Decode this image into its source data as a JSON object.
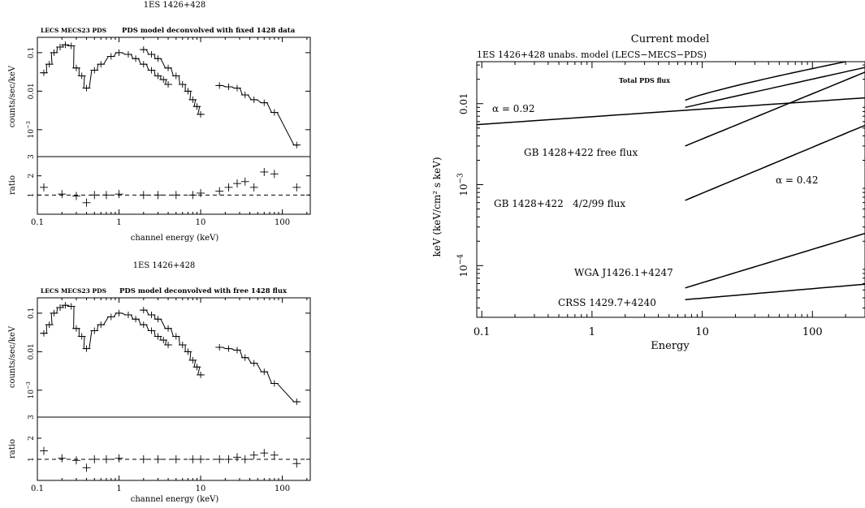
{
  "chart_data": [
    {
      "type": "line",
      "title": "1ES 1426+428",
      "header_left": "LECS MECS23 PDS",
      "header_right": "PDS model deconvolved with fixed 1428 data",
      "xlabel": "channel energy (keV)",
      "ylabel_top": "counts/sec/keV",
      "ylabel_bottom": "ratio",
      "x_scale": "log",
      "xlim": [
        0.1,
        220
      ],
      "top_ylim": [
        0.0002,
        0.25
      ],
      "y_scale_top": "log",
      "bottom_ylim": [
        0,
        3
      ],
      "x_tick_labels": [
        "0.1",
        "1",
        "10",
        "100"
      ],
      "y_tick_labels_top": [
        "0.1",
        "0.01",
        "10^-3"
      ],
      "y_tick_labels_bottom": [
        "1",
        "2",
        "3"
      ],
      "series": [
        {
          "name": "data",
          "x": [
            0.12,
            0.14,
            0.16,
            0.19,
            0.22,
            0.26,
            0.3,
            0.35,
            0.4,
            0.5,
            0.6,
            0.8,
            1.0,
            1.3,
            1.6,
            2.0,
            2.5,
            3.0,
            3.5,
            4.0
          ],
          "y": [
            0.03,
            0.05,
            0.1,
            0.14,
            0.16,
            0.15,
            0.04,
            0.025,
            0.012,
            0.035,
            0.05,
            0.08,
            0.1,
            0.09,
            0.07,
            0.05,
            0.035,
            0.025,
            0.02,
            0.015
          ]
        },
        {
          "name": "data-mecs",
          "x": [
            2.0,
            2.5,
            3.0,
            4.0,
            5.0,
            6.0,
            7.0,
            8.0,
            9.0,
            10.0
          ],
          "y": [
            0.12,
            0.09,
            0.07,
            0.04,
            0.025,
            0.015,
            0.01,
            0.006,
            0.004,
            0.0025
          ]
        },
        {
          "name": "data-pds",
          "x": [
            17,
            22,
            28,
            35,
            45,
            60,
            80,
            150
          ],
          "y": [
            0.014,
            0.013,
            0.012,
            0.008,
            0.006,
            0.005,
            0.0028,
            0.0004
          ]
        },
        {
          "name": "ratio",
          "x": [
            0.12,
            0.2,
            0.3,
            0.4,
            0.5,
            0.7,
            1,
            2,
            3,
            5,
            8,
            10,
            17,
            22,
            28,
            35,
            45,
            60,
            80,
            150
          ],
          "y": [
            1.4,
            1.05,
            0.95,
            0.6,
            1.0,
            1.0,
            1.05,
            1.0,
            1.0,
            1.0,
            1.0,
            1.1,
            1.2,
            1.4,
            1.6,
            1.7,
            1.4,
            2.2,
            2.1,
            1.4
          ]
        }
      ]
    },
    {
      "type": "line",
      "title": "1ES 1426+428",
      "header_left": "LECS MECS23 PDS",
      "header_right": "PDS model deconvolved with free 1428 flux",
      "xlabel": "channel energy (keV)",
      "ylabel_top": "counts/sec/keV",
      "ylabel_bottom": "ratio",
      "x_scale": "log",
      "xlim": [
        0.1,
        220
      ],
      "top_ylim": [
        0.0002,
        0.25
      ],
      "y_scale_top": "log",
      "bottom_ylim": [
        0,
        3
      ],
      "x_tick_labels": [
        "0.1",
        "1",
        "10",
        "100"
      ],
      "y_tick_labels_top": [
        "0.1",
        "0.01",
        "10^-3"
      ],
      "y_tick_labels_bottom": [
        "1",
        "2",
        "3"
      ],
      "series": [
        {
          "name": "data",
          "x": [
            0.12,
            0.14,
            0.16,
            0.19,
            0.22,
            0.26,
            0.3,
            0.35,
            0.4,
            0.5,
            0.6,
            0.8,
            1.0,
            1.3,
            1.6,
            2.0,
            2.5,
            3.0,
            3.5,
            4.0
          ],
          "y": [
            0.03,
            0.05,
            0.1,
            0.14,
            0.16,
            0.15,
            0.04,
            0.025,
            0.012,
            0.035,
            0.05,
            0.08,
            0.1,
            0.09,
            0.07,
            0.05,
            0.035,
            0.025,
            0.02,
            0.015
          ]
        },
        {
          "name": "data-mecs",
          "x": [
            2.0,
            2.5,
            3.0,
            4.0,
            5.0,
            6.0,
            7.0,
            8.0,
            9.0,
            10.0
          ],
          "y": [
            0.12,
            0.09,
            0.07,
            0.04,
            0.025,
            0.015,
            0.01,
            0.006,
            0.004,
            0.0025
          ]
        },
        {
          "name": "data-pds",
          "x": [
            17,
            22,
            28,
            35,
            45,
            60,
            80,
            150
          ],
          "y": [
            0.013,
            0.012,
            0.011,
            0.007,
            0.005,
            0.003,
            0.0015,
            0.0005
          ]
        },
        {
          "name": "ratio",
          "x": [
            0.12,
            0.2,
            0.3,
            0.4,
            0.5,
            0.7,
            1,
            2,
            3,
            5,
            8,
            10,
            17,
            22,
            28,
            35,
            45,
            60,
            80,
            150
          ],
          "y": [
            1.4,
            1.05,
            0.95,
            0.6,
            1.0,
            1.0,
            1.05,
            1.0,
            1.0,
            1.0,
            1.0,
            1.0,
            1.0,
            1.0,
            1.1,
            1.0,
            1.2,
            1.3,
            1.2,
            0.8
          ]
        }
      ]
    },
    {
      "type": "line",
      "title": "Current model",
      "subtitle": "1ES 1426+428 unabs. model  (LECS−MECS−PDS)",
      "xlabel": "Energy",
      "ylabel": "keV (keV/cm² s keV)",
      "x_scale": "log",
      "y_scale": "log",
      "xlim": [
        0.09,
        300
      ],
      "ylim": [
        2.3e-05,
        0.033
      ],
      "x_tick_labels": [
        "0.1",
        "1",
        "10",
        "100"
      ],
      "y_tick_labels": [
        "0.01",
        "10^-3",
        "10^-4"
      ],
      "annotations": [
        "Total PDS flux",
        "α = 0.92",
        "GB 1428+422 free flux",
        "α = 0.42",
        "GB 1428+422   4/2/99 flux",
        "WGA J1426.1+4247",
        "CRSS 1429.7+4240"
      ],
      "series": [
        {
          "name": "1ES 1426+428 unabs. model",
          "x": [
            0.09,
            300
          ],
          "y": [
            0.0055,
            0.0118
          ]
        },
        {
          "name": "GB 1428+422 free flux",
          "x": [
            7,
            300
          ],
          "y": [
            0.003,
            0.0245
          ]
        },
        {
          "name": "GB 1428+422 4/2/99 flux",
          "x": [
            7,
            300
          ],
          "y": [
            0.00064,
            0.0054
          ]
        },
        {
          "name": "WGA J1426.1+4247",
          "x": [
            7,
            300
          ],
          "y": [
            5.3e-05,
            0.00025
          ]
        },
        {
          "name": "CRSS 1429.7+4240",
          "x": [
            7,
            300
          ],
          "y": [
            3.8e-05,
            5.9e-05
          ]
        },
        {
          "name": "Total PDS flux (lower)",
          "x": [
            7,
            300
          ],
          "y": [
            0.009,
            0.028
          ]
        },
        {
          "name": "Total PDS flux (upper)",
          "x": [
            7,
            200
          ],
          "y": [
            0.011,
            0.033
          ]
        }
      ]
    }
  ]
}
